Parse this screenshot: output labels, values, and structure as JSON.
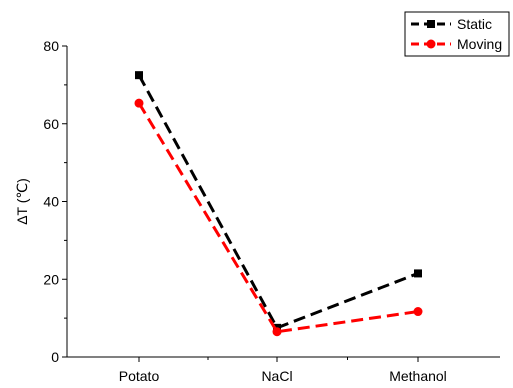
{
  "chart_data": {
    "type": "line",
    "title": "",
    "xlabel": "",
    "ylabel": "ΔT (℃)",
    "categories": [
      "Potato",
      "NaCl",
      "Methanol"
    ],
    "ylim": [
      0,
      80
    ],
    "yticks": [
      0,
      20,
      40,
      60,
      80
    ],
    "grid": false,
    "legend_position": "top-right",
    "series": [
      {
        "name": "Static",
        "values": [
          72.5,
          7.5,
          21.5
        ],
        "color": "#000000",
        "marker": "square",
        "dash": "dashed"
      },
      {
        "name": "Moving",
        "values": [
          65.3,
          6.5,
          11.7
        ],
        "color": "#ff0000",
        "marker": "circle",
        "dash": "dashed"
      }
    ]
  }
}
